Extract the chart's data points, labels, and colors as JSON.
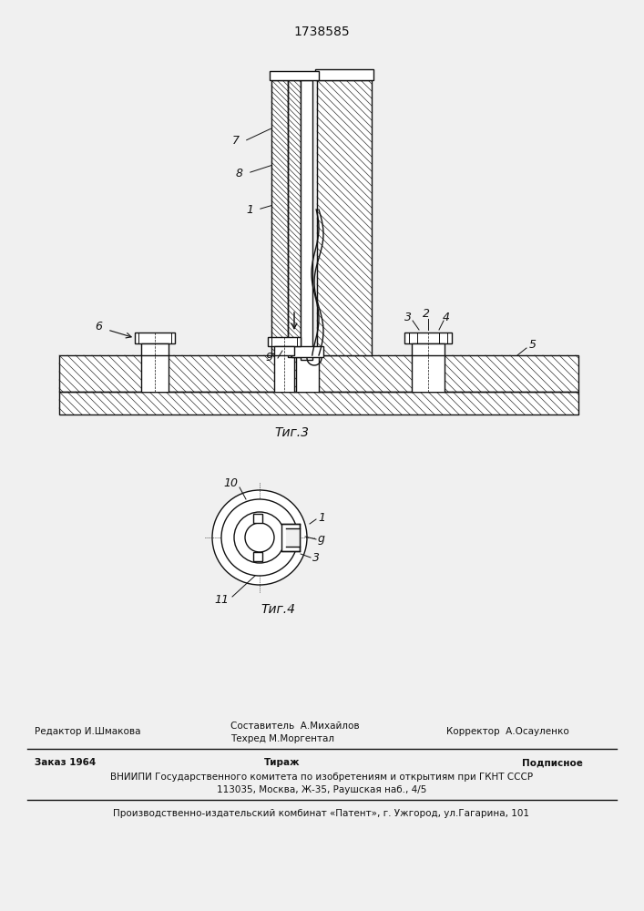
{
  "title": "1738585",
  "bg_color": "#f0f0f0",
  "fig3_caption": "Τиг.3",
  "fig4_caption": "Τиг.4",
  "footer_line1_left": "Редактор И.Шмакова",
  "footer_line1_center1": "Составитель  А.Михайлов",
  "footer_line1_center2": "Техред М.Моргентал",
  "footer_line1_right": "Корректор  А.Осауленко",
  "footer_line2_left": "Заказ 1964",
  "footer_line2_center": "Тираж",
  "footer_line2_right": "Подписное",
  "footer_line3": "ВНИИПИ Государственного комитета по изобретениям и открытиям при ГКНТ СССР",
  "footer_line4": "113035, Москва, Ж-35, Раушская наб., 4/5",
  "footer_line5": "Производственно-издательский комбинат «Патент», г. Ужгород, ул.Гагарина, 101"
}
